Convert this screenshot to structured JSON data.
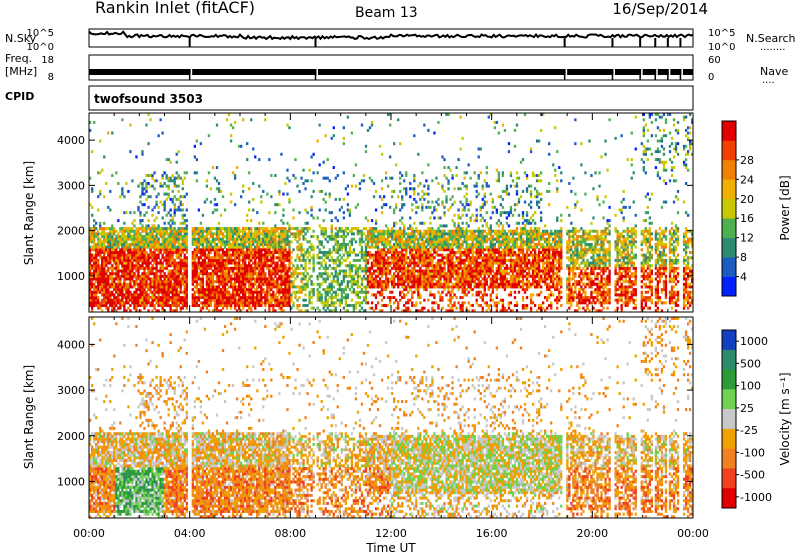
{
  "header": {
    "station": "Rankin Inlet (fitACF)",
    "beam": "Beam 13",
    "date": "16/Sep/2014"
  },
  "noise_panel": {
    "left_label": "N.Sky",
    "right_label": "N.Search",
    "right_dots": "........",
    "tick_top_left": "10^5",
    "tick_bottom_left": "10^0",
    "tick_top_right": "10^5",
    "tick_bottom_right": "10^0"
  },
  "freq_panel": {
    "left_label": "Freq.",
    "left_unit": "[MHz]",
    "right_label": "Nave",
    "right_dots": "....",
    "tick_top_left": "18",
    "tick_bottom_left": "8",
    "tick_top_right": "60",
    "tick_bottom_right": "0"
  },
  "cpid_panel": {
    "label": "CPID",
    "value": "twofsound 3503"
  },
  "chart_data": [
    {
      "type": "heatmap",
      "name": "power",
      "ylabel": "Slant Range [km]",
      "yticks": [
        "1000",
        "2000",
        "3000",
        "4000"
      ],
      "ylim": [
        200,
        4600
      ],
      "xlim_hours": [
        0,
        24
      ],
      "colorbar_label": "Power [dB]",
      "colorbar_ticks": [
        "4",
        "8",
        "12",
        "16",
        "20",
        "24",
        "28"
      ],
      "colors": [
        "#0020ff",
        "#1c5cc0",
        "#2d8a73",
        "#4fb04f",
        "#c8c800",
        "#f0b000",
        "#f08000",
        "#f04000",
        "#e00000"
      ]
    },
    {
      "type": "heatmap",
      "name": "velocity",
      "ylabel": "Slant Range [km]",
      "yticks": [
        "1000",
        "2000",
        "3000",
        "4000"
      ],
      "ylim": [
        200,
        4600
      ],
      "xlim_hours": [
        0,
        24
      ],
      "colorbar_label": "Velocity [m s⁻¹]",
      "colorbar_ticks": [
        "1000",
        "500",
        "100",
        "25",
        "-25",
        "-100",
        "-500",
        "-1000"
      ],
      "colors": [
        "#1040c0",
        "#2a8a6a",
        "#2e9a3a",
        "#70d050",
        "#c8c8c8",
        "#f0a000",
        "#f08020",
        "#f04020",
        "#e00000"
      ]
    }
  ],
  "xaxis": {
    "label": "Time UT",
    "ticks": [
      "00:00",
      "04:00",
      "08:00",
      "12:00",
      "16:00",
      "20:00",
      "00:00"
    ]
  }
}
